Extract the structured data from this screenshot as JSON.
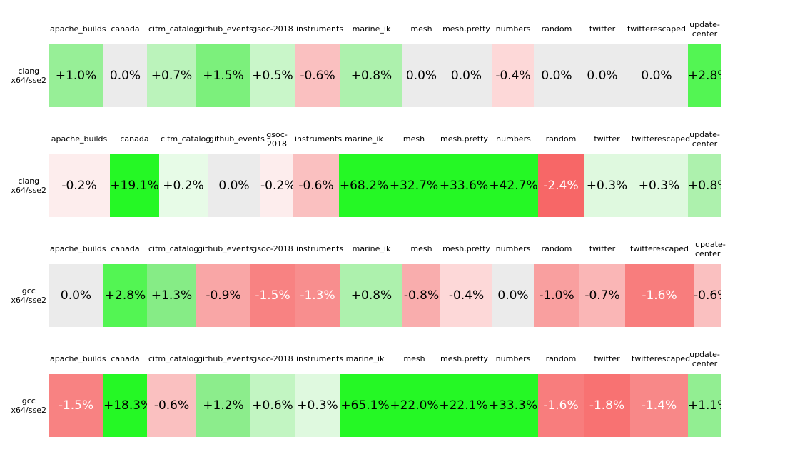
{
  "chart_data": {
    "type": "heatmap",
    "title": "",
    "columns": [
      "apache_builds",
      "canada",
      "citm_catalog",
      "github_events",
      "gsoc-2018",
      "instruments",
      "marine_ik",
      "mesh",
      "mesh.pretty",
      "numbers",
      "random",
      "twitter",
      "twitterescaped",
      "update-center"
    ],
    "rows": [
      {
        "label": "clang x64/sse2",
        "values_pct": [
          1.0,
          0.0,
          0.7,
          1.5,
          0.5,
          -0.6,
          0.8,
          0.0,
          0.0,
          -0.4,
          0.0,
          0.0,
          0.0,
          2.8
        ]
      },
      {
        "label": "clang x64/sse2",
        "values_pct": [
          -0.2,
          19.1,
          0.2,
          0.0,
          -0.2,
          -0.6,
          68.2,
          32.7,
          33.6,
          42.7,
          -2.4,
          0.3,
          0.3,
          0.8
        ]
      },
      {
        "label": "gcc x64/sse2",
        "values_pct": [
          0.0,
          2.8,
          1.3,
          -0.9,
          -1.5,
          -1.3,
          0.8,
          -0.8,
          -0.4,
          0.0,
          -1.0,
          -0.7,
          -1.6,
          -0.6
        ]
      },
      {
        "label": "gcc x64/sse2",
        "values_pct": [
          -1.5,
          18.3,
          -0.6,
          1.2,
          0.6,
          0.3,
          65.1,
          22.0,
          22.1,
          33.3,
          -1.6,
          -1.8,
          -1.4,
          1.1
        ]
      }
    ],
    "colors": {
      "zero": "#EBEBEB",
      "positive_max": "#25F825",
      "negative_max": "#F76767",
      "text_default": "#000000",
      "text_on_dark": "#FFFFFF"
    },
    "legend_position": "none",
    "grid": false
  },
  "tables": [
    {
      "row_label": {
        "line1": "clang",
        "line2": "x64/sse2"
      },
      "columns": [
        "apache_builds",
        "canada",
        "citm_catalog",
        "github_events",
        "gsoc-2018",
        "instruments",
        "marine_ik",
        "mesh",
        "mesh.pretty",
        "numbers",
        "random",
        "twitter",
        "twitterescaped",
        "update-center"
      ],
      "cells": [
        {
          "text": "+1.0%",
          "bg": "#97EF97",
          "fg": "#000000"
        },
        {
          "text": "0.0%",
          "bg": "#EBEBEB",
          "fg": "#000000"
        },
        {
          "text": "+0.7%",
          "bg": "#BBF3BB",
          "fg": "#000000"
        },
        {
          "text": "+1.5%",
          "bg": "#7CF07C",
          "fg": "#000000"
        },
        {
          "text": "+0.5%",
          "bg": "#C9F6C9",
          "fg": "#000000"
        },
        {
          "text": "-0.6%",
          "bg": "#FAC0C0",
          "fg": "#000000"
        },
        {
          "text": "+0.8%",
          "bg": "#ADF1AD",
          "fg": "#000000"
        },
        {
          "text": "0.0%",
          "bg": "#EBEBEB",
          "fg": "#000000"
        },
        {
          "text": "0.0%",
          "bg": "#EBEBEB",
          "fg": "#000000"
        },
        {
          "text": "-0.4%",
          "bg": "#FDD8D8",
          "fg": "#000000"
        },
        {
          "text": "0.0%",
          "bg": "#EBEBEB",
          "fg": "#000000"
        },
        {
          "text": "0.0%",
          "bg": "#EBEBEB",
          "fg": "#000000"
        },
        {
          "text": "0.0%",
          "bg": "#EBEBEB",
          "fg": "#000000"
        },
        {
          "text": "+2.8%",
          "bg": "#53F553",
          "fg": "#000000"
        }
      ]
    },
    {
      "row_label": {
        "line1": "clang",
        "line2": "x64/sse2"
      },
      "columns": [
        "apache_builds",
        "canada",
        "citm_catalog",
        "github_events",
        "gsoc-2018",
        "instruments",
        "marine_ik",
        "mesh",
        "mesh.pretty",
        "numbers",
        "random",
        "twitter",
        "twitterescaped",
        "update-center"
      ],
      "cells": [
        {
          "text": "-0.2%",
          "bg": "#FDEDED",
          "fg": "#000000"
        },
        {
          "text": "+19.1%",
          "bg": "#25F825",
          "fg": "#000000"
        },
        {
          "text": "+0.2%",
          "bg": "#E7FBE7",
          "fg": "#000000"
        },
        {
          "text": "0.0%",
          "bg": "#EBEBEB",
          "fg": "#000000"
        },
        {
          "text": "-0.2%",
          "bg": "#FDEDED",
          "fg": "#000000"
        },
        {
          "text": "-0.6%",
          "bg": "#FAC0C0",
          "fg": "#000000"
        },
        {
          "text": "+68.2%",
          "bg": "#25F825",
          "fg": "#000000"
        },
        {
          "text": "+32.7%",
          "bg": "#25F825",
          "fg": "#000000"
        },
        {
          "text": "+33.6%",
          "bg": "#25F825",
          "fg": "#000000"
        },
        {
          "text": "+42.7%",
          "bg": "#25F825",
          "fg": "#000000"
        },
        {
          "text": "-2.4%",
          "bg": "#F76767",
          "fg": "#FFFFFF"
        },
        {
          "text": "+0.3%",
          "bg": "#DFF9DF",
          "fg": "#000000"
        },
        {
          "text": "+0.3%",
          "bg": "#DFF9DF",
          "fg": "#000000"
        },
        {
          "text": "+0.8%",
          "bg": "#ADF1AD",
          "fg": "#000000"
        }
      ]
    },
    {
      "row_label": {
        "line1": "gcc",
        "line2": "x64/sse2"
      },
      "columns": [
        "apache_builds",
        "canada",
        "citm_catalog",
        "github_events",
        "gsoc-2018",
        "instruments",
        "marine_ik",
        "mesh",
        "mesh.pretty",
        "numbers",
        "random",
        "twitter",
        "twitterescaped",
        "update-center"
      ],
      "cells": [
        {
          "text": "0.0%",
          "bg": "#EBEBEB",
          "fg": "#000000"
        },
        {
          "text": "+2.8%",
          "bg": "#53F553",
          "fg": "#000000"
        },
        {
          "text": "+1.3%",
          "bg": "#86EC86",
          "fg": "#000000"
        },
        {
          "text": "-0.9%",
          "bg": "#F9A6A6",
          "fg": "#000000"
        },
        {
          "text": "-1.5%",
          "bg": "#F88282",
          "fg": "#FFFFFF"
        },
        {
          "text": "-1.3%",
          "bg": "#F88E8E",
          "fg": "#FFFFFF"
        },
        {
          "text": "+0.8%",
          "bg": "#ADF1AD",
          "fg": "#000000"
        },
        {
          "text": "-0.8%",
          "bg": "#F9ADAD",
          "fg": "#000000"
        },
        {
          "text": "-0.4%",
          "bg": "#FDD8D8",
          "fg": "#000000"
        },
        {
          "text": "0.0%",
          "bg": "#EBEBEB",
          "fg": "#000000"
        },
        {
          "text": "-1.0%",
          "bg": "#F99F9F",
          "fg": "#000000"
        },
        {
          "text": "-0.7%",
          "bg": "#FAB6B6",
          "fg": "#000000"
        },
        {
          "text": "-1.6%",
          "bg": "#F87D7D",
          "fg": "#FFFFFF"
        },
        {
          "text": "-0.6%",
          "bg": "#FAC0C0",
          "fg": "#000000"
        }
      ]
    },
    {
      "row_label": {
        "line1": "gcc",
        "line2": "x64/sse2"
      },
      "columns": [
        "apache_builds",
        "canada",
        "citm_catalog",
        "github_events",
        "gsoc-2018",
        "instruments",
        "marine_ik",
        "mesh",
        "mesh.pretty",
        "numbers",
        "random",
        "twitter",
        "twitterescaped",
        "update-center"
      ],
      "cells": [
        {
          "text": "-1.5%",
          "bg": "#F88282",
          "fg": "#FFFFFF"
        },
        {
          "text": "+18.3%",
          "bg": "#25F825",
          "fg": "#000000"
        },
        {
          "text": "-0.6%",
          "bg": "#FAC0C0",
          "fg": "#000000"
        },
        {
          "text": "+1.2%",
          "bg": "#8CED8C",
          "fg": "#000000"
        },
        {
          "text": "+0.6%",
          "bg": "#C2F5C2",
          "fg": "#000000"
        },
        {
          "text": "+0.3%",
          "bg": "#DFF9DF",
          "fg": "#000000"
        },
        {
          "text": "+65.1%",
          "bg": "#25F825",
          "fg": "#000000"
        },
        {
          "text": "+22.0%",
          "bg": "#25F825",
          "fg": "#000000"
        },
        {
          "text": "+22.1%",
          "bg": "#25F825",
          "fg": "#000000"
        },
        {
          "text": "+33.3%",
          "bg": "#25F825",
          "fg": "#000000"
        },
        {
          "text": "-1.6%",
          "bg": "#F87D7D",
          "fg": "#FFFFFF"
        },
        {
          "text": "-1.8%",
          "bg": "#F87272",
          "fg": "#FFFFFF"
        },
        {
          "text": "-1.4%",
          "bg": "#F88888",
          "fg": "#FFFFFF"
        },
        {
          "text": "+1.1%",
          "bg": "#92EE92",
          "fg": "#000000"
        }
      ]
    }
  ]
}
